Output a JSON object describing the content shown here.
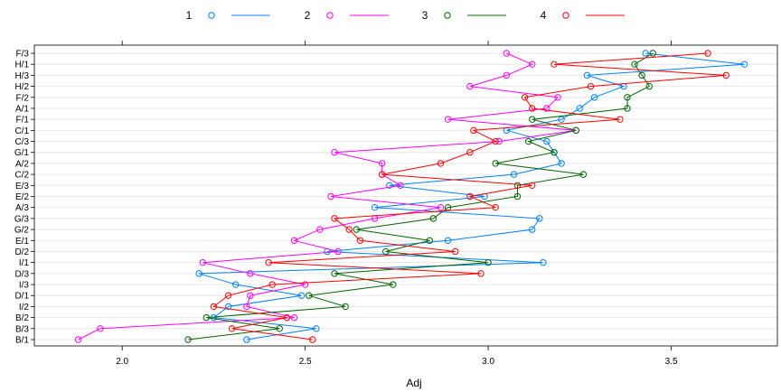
{
  "chart_data": {
    "type": "line",
    "orientation": "horizontal",
    "xlabel": "Adj",
    "ylabel": "",
    "xlim": [
      1.76,
      3.79
    ],
    "x_ticks": [
      2.0,
      2.5,
      3.0,
      3.5
    ],
    "x_tick_labels": [
      "2.0",
      "2.5",
      "3.0",
      "3.5"
    ],
    "grid": true,
    "legend_position": "top",
    "categories": [
      "B/1",
      "B/3",
      "B/2",
      "I/2",
      "D/1",
      "I/3",
      "D/3",
      "I/1",
      "D/2",
      "E/1",
      "G/2",
      "G/3",
      "A/3",
      "E/2",
      "E/3",
      "C/2",
      "A/2",
      "G/1",
      "C/3",
      "C/1",
      "F/1",
      "A/1",
      "F/2",
      "H/2",
      "H/3",
      "H/1",
      "F/3"
    ],
    "series": [
      {
        "name": "1",
        "color": "#0080ff",
        "values": [
          2.34,
          2.53,
          2.25,
          2.29,
          2.49,
          2.31,
          2.21,
          3.15,
          2.56,
          2.89,
          3.12,
          3.14,
          2.69,
          2.99,
          2.73,
          3.07,
          3.2,
          3.18,
          3.16,
          3.05,
          3.2,
          3.25,
          3.29,
          3.37,
          3.27,
          3.7,
          3.43
        ]
      },
      {
        "name": "2",
        "color": "#ff00ff",
        "values": [
          1.88,
          1.94,
          2.47,
          2.34,
          2.35,
          2.5,
          2.35,
          2.22,
          2.59,
          2.47,
          2.54,
          2.69,
          2.87,
          2.57,
          2.76,
          2.71,
          2.71,
          2.58,
          3.03,
          3.24,
          2.89,
          3.16,
          3.19,
          2.95,
          3.05,
          3.12,
          3.05
        ]
      },
      {
        "name": "3",
        "color": "#006400",
        "values": [
          2.18,
          2.43,
          2.23,
          2.61,
          2.51,
          2.74,
          2.58,
          3.0,
          2.72,
          2.84,
          2.64,
          2.85,
          2.89,
          3.08,
          3.08,
          3.26,
          3.02,
          3.18,
          3.11,
          3.24,
          3.12,
          3.38,
          3.38,
          3.44,
          3.42,
          3.4,
          3.45
        ]
      },
      {
        "name": "4",
        "color": "#ff0000",
        "values": [
          2.52,
          2.3,
          2.45,
          2.25,
          2.29,
          2.41,
          2.98,
          2.4,
          2.91,
          2.65,
          2.62,
          2.58,
          3.02,
          2.95,
          3.12,
          2.71,
          2.87,
          2.95,
          3.02,
          2.96,
          3.36,
          3.12,
          3.1,
          3.28,
          3.65,
          3.18,
          3.6
        ]
      }
    ]
  }
}
